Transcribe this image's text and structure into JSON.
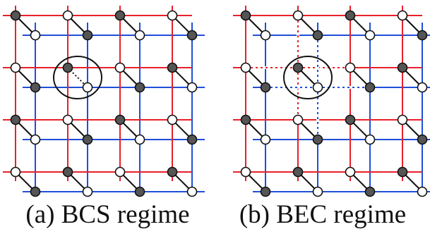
{
  "colors": {
    "lattice_a": "#e8202a",
    "lattice_b": "#1f4fd8",
    "filled_site": "#555555",
    "empty_site": "#ffffff",
    "outline": "#111111"
  },
  "panels": [
    {
      "id": "bcs",
      "caption": "(a) BCS regime",
      "pairing_link": "dotted black line between paired sites",
      "dotted_lattice_segments": false
    },
    {
      "id": "bec",
      "caption": "(b) BEC regime",
      "pairing_link": "solid black line between paired sites",
      "dotted_lattice_segments": true
    }
  ],
  "grid": {
    "red_lines_per_direction": 4,
    "blue_lines_per_direction": 4,
    "dimer_rows": 4,
    "dimer_cols": 4
  }
}
